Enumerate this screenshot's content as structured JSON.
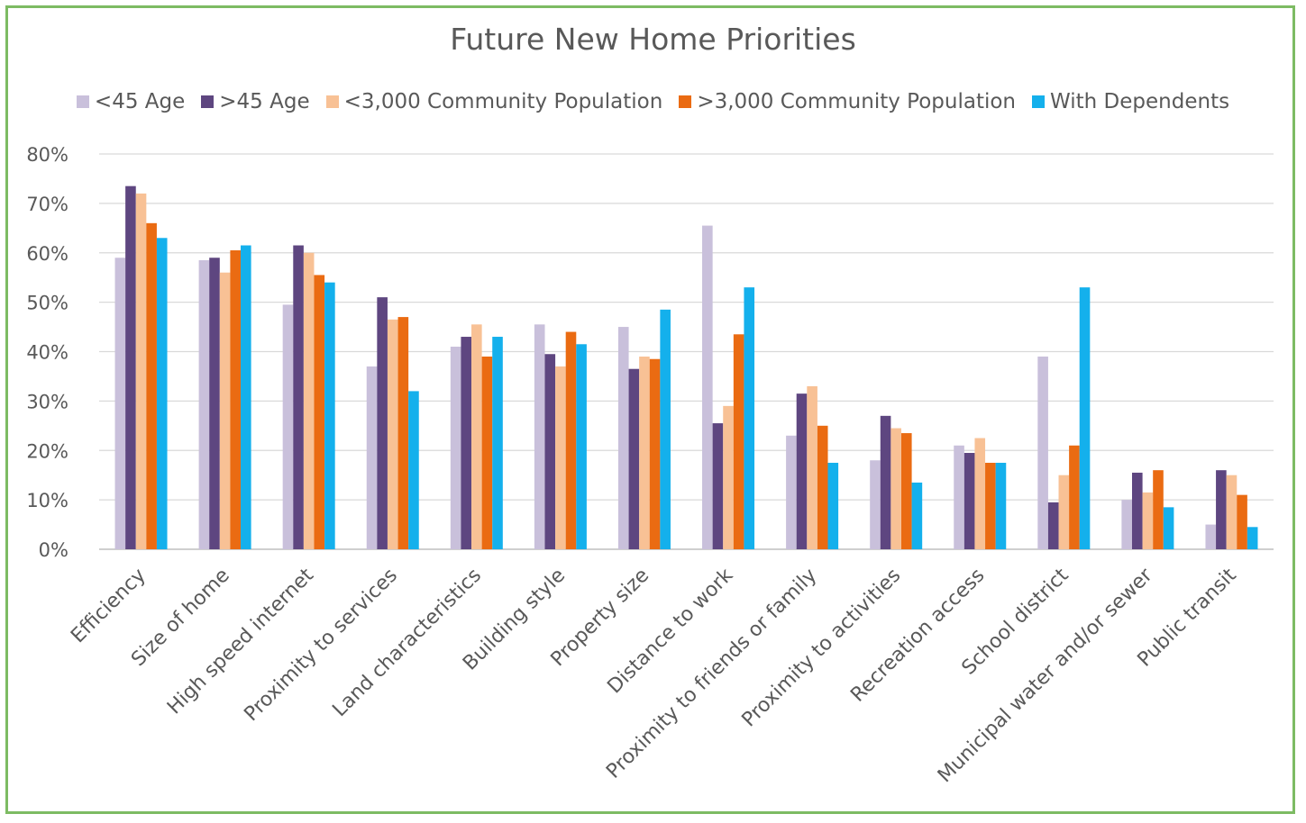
{
  "chart_data": {
    "type": "bar",
    "title": "Future New Home Priorities",
    "xlabel": "",
    "ylabel": "",
    "ylim": [
      0,
      80
    ],
    "y_ticks": [
      "0%",
      "10%",
      "20%",
      "30%",
      "40%",
      "50%",
      "60%",
      "70%",
      "80%"
    ],
    "y_tick_values": [
      0,
      10,
      20,
      30,
      40,
      50,
      60,
      70,
      80
    ],
    "grid": true,
    "legend_position": "top",
    "categories": [
      "Efficiency",
      "Size of home",
      "High speed internet",
      "Proximity to services",
      "Land characteristics",
      "Building style",
      "Property size",
      "Distance to work",
      "Proximity to friends or family",
      "Proximity to activities",
      "Recreation access",
      "School district",
      "Municipal water and/or sewer",
      "Public transit"
    ],
    "series": [
      {
        "name": "<45 Age",
        "color": "#c9c0db",
        "values": [
          59,
          58.5,
          49.5,
          37,
          41,
          45.5,
          45,
          65.5,
          23,
          18,
          21,
          39,
          10,
          5
        ]
      },
      {
        "name": ">45 Age",
        "color": "#5e4680",
        "values": [
          73.5,
          59,
          61.5,
          51,
          43,
          39.5,
          36.5,
          25.5,
          31.5,
          27,
          19.5,
          9.5,
          15.5,
          16
        ]
      },
      {
        "name": "<3,000 Community Population",
        "color": "#f8c195",
        "values": [
          72,
          56,
          60,
          46.5,
          45.5,
          37,
          39,
          29,
          33,
          24.5,
          22.5,
          15,
          11.5,
          15
        ]
      },
      {
        "name": ">3,000 Community Population",
        "color": "#ea6b12",
        "values": [
          66,
          60.5,
          55.5,
          47,
          39,
          44,
          38.5,
          43.5,
          25,
          23.5,
          17.5,
          21,
          16,
          11
        ]
      },
      {
        "name": "With Dependents",
        "color": "#14b0ec",
        "values": [
          63,
          61.5,
          54,
          32,
          43,
          41.5,
          48.5,
          53,
          17.5,
          13.5,
          17.5,
          53,
          8.5,
          4.5
        ]
      }
    ]
  }
}
